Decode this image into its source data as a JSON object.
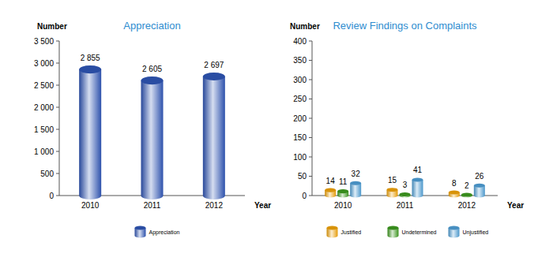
{
  "chart_data": [
    {
      "type": "bar",
      "title": "Appreciation",
      "ylabel": "Number",
      "xlabel": "Year",
      "categories": [
        "2010",
        "2011",
        "2012"
      ],
      "series": [
        {
          "name": "Appreciation",
          "color": "#2f55b5",
          "values": [
            2855,
            2605,
            2697
          ],
          "value_labels": [
            "2 855",
            "2 605",
            "2 697"
          ]
        }
      ],
      "ylim": [
        0,
        3500
      ],
      "yticks": [
        0,
        500,
        {
          "value": 1000,
          "label": "1 000"
        },
        {
          "value": 1500,
          "label": "1 500"
        },
        {
          "value": 2000,
          "label": "2 000"
        },
        {
          "value": 2500,
          "label": "2 500"
        },
        {
          "value": 3000,
          "label": "3 000"
        },
        {
          "value": 3500,
          "label": "3 500"
        }
      ],
      "grid": false,
      "data_labels": true,
      "legend": "bottom"
    },
    {
      "type": "bar",
      "title": "Review Findings on Complaints",
      "ylabel": "Number",
      "xlabel": "Year",
      "categories": [
        "2010",
        "2011",
        "2012"
      ],
      "series": [
        {
          "name": "Justified",
          "color": "#f0a30a",
          "values": [
            14,
            15,
            8
          ]
        },
        {
          "name": "Undetermined",
          "color": "#3d9a1f",
          "values": [
            11,
            3,
            2
          ]
        },
        {
          "name": "Unjustified",
          "color": "#4f9fd6",
          "values": [
            32,
            41,
            26
          ]
        }
      ],
      "ylim": [
        0,
        400
      ],
      "yticks": [
        0,
        50,
        100,
        150,
        200,
        250,
        300,
        350,
        400
      ],
      "grid": false,
      "data_labels": true,
      "legend": "bottom"
    }
  ]
}
